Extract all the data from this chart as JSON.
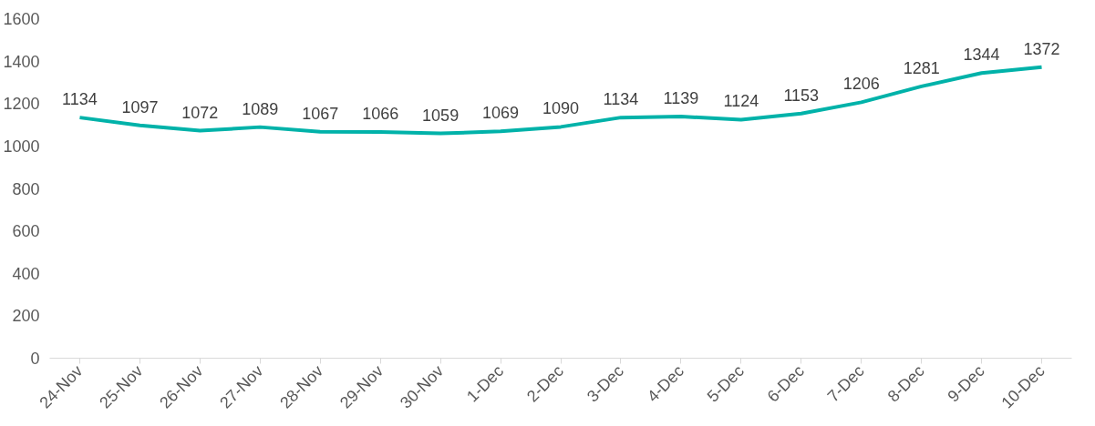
{
  "chart_data": {
    "type": "line",
    "categories": [
      "24-Nov",
      "25-Nov",
      "26-Nov",
      "27-Nov",
      "28-Nov",
      "29-Nov",
      "30-Nov",
      "1-Dec",
      "2-Dec",
      "3-Dec",
      "4-Dec",
      "5-Dec",
      "6-Dec",
      "7-Dec",
      "8-Dec",
      "9-Dec",
      "10-Dec"
    ],
    "series": [
      {
        "color": "#00b2a9",
        "values": [
          1134,
          1097,
          1072,
          1089,
          1067,
          1066,
          1059,
          1069,
          1090,
          1134,
          1139,
          1124,
          1153,
          1206,
          1281,
          1344,
          1372
        ]
      }
    ],
    "ylim": [
      0,
      1600
    ],
    "yticks": [
      0,
      200,
      400,
      600,
      800,
      1000,
      1200,
      1400,
      1600
    ],
    "data_labels": true,
    "grid": false,
    "marker": "none",
    "line_style": "solid"
  }
}
